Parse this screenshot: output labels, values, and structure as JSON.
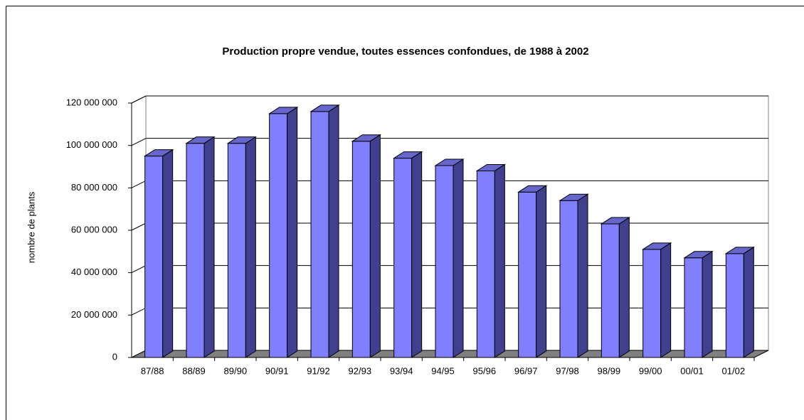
{
  "chart_data": {
    "type": "bar3d",
    "title": "Production propre vendue, toutes essences confondues, de 1988 à 2002",
    "y_label": "nombre de plants",
    "categories": [
      "87/88",
      "88/89",
      "89/90",
      "90/91",
      "91/92",
      "92/93",
      "93/94",
      "94/95",
      "95/96",
      "96/97",
      "97/98",
      "98/99",
      "99/00",
      "00/01",
      "01/02"
    ],
    "values": [
      95000000,
      101000000,
      101000000,
      115000000,
      116000000,
      102000000,
      94000000,
      90500000,
      88000000,
      78000000,
      74000000,
      63000000,
      51000000,
      47000000,
      49000000
    ],
    "color": "#8080ff",
    "ylim": [
      0,
      120000000
    ],
    "yticks": [
      0,
      {
        "value": 20000000,
        "label": "20 000 000"
      },
      {
        "value": 40000000,
        "label": "40 000 000"
      },
      {
        "value": 60000000,
        "label": "60 000 000"
      },
      {
        "value": 80000000,
        "label": "80 000 000"
      },
      {
        "value": 100000000,
        "label": "100 000 000"
      },
      {
        "value": 120000000,
        "label": "120 000 000"
      }
    ],
    "grid": true
  }
}
